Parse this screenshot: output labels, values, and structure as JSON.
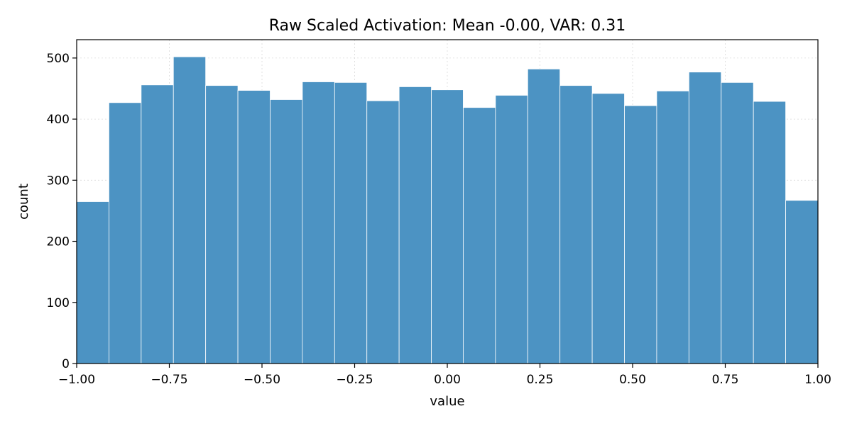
{
  "chart_data": {
    "type": "bar",
    "title": "Raw Scaled Activation: Mean -0.00, VAR: 0.31",
    "xlabel": "value",
    "ylabel": "count",
    "xlim": [
      -1.0,
      1.0
    ],
    "ylim": [
      0,
      530
    ],
    "x_ticks": [
      -1.0,
      -0.75,
      -0.5,
      -0.25,
      0.0,
      0.25,
      0.5,
      0.75,
      1.0
    ],
    "x_tick_labels": [
      "−1.00",
      "−0.75",
      "−0.50",
      "−0.25",
      "0.00",
      "0.25",
      "0.50",
      "0.75",
      "1.00"
    ],
    "y_ticks": [
      0,
      100,
      200,
      300,
      400,
      500
    ],
    "y_tick_labels": [
      "0",
      "100",
      "200",
      "300",
      "400",
      "500"
    ],
    "grid": true,
    "bin_edges": [
      -1.0,
      -0.913,
      -0.826,
      -0.739,
      -0.652,
      -0.565,
      -0.478,
      -0.391,
      -0.304,
      -0.217,
      -0.13,
      -0.043,
      0.043,
      0.13,
      0.217,
      0.304,
      0.391,
      0.478,
      0.565,
      0.652,
      0.739,
      0.826,
      0.913,
      1.0
    ],
    "values": [
      265,
      427,
      456,
      502,
      455,
      447,
      432,
      461,
      460,
      430,
      453,
      448,
      419,
      439,
      482,
      455,
      442,
      422,
      446,
      477,
      460,
      429,
      267
    ],
    "bar_color": "#4c93c3",
    "bar_edge_color": "#ffffff"
  }
}
